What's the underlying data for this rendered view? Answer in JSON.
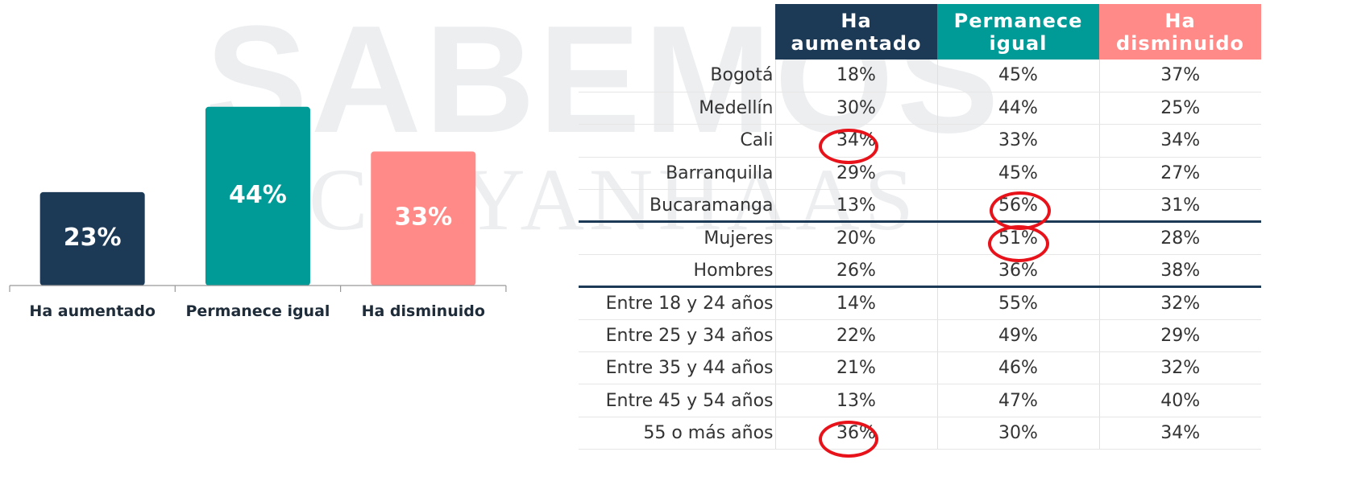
{
  "chart_data": {
    "type": "bar",
    "categories": [
      "Ha aumentado",
      "Permanece igual",
      "Ha disminuido"
    ],
    "values": [
      23,
      44,
      33
    ],
    "value_labels": [
      "23%",
      "44%",
      "33%"
    ],
    "colors": [
      "#1c3a56",
      "#009a97",
      "#ff8a87"
    ]
  },
  "table": {
    "columns": [
      "Ha aumentado",
      "Permanece igual",
      "Ha disminuido"
    ],
    "rows": [
      [
        "Bogotá",
        "18%",
        "45%",
        "37%"
      ],
      [
        "Medellín",
        "30%",
        "44%",
        "25%"
      ],
      [
        "Cali",
        "34%",
        "33%",
        "34%"
      ],
      [
        "Barranquilla",
        "29%",
        "45%",
        "27%"
      ],
      [
        "Bucaramanga",
        "13%",
        "56%",
        "31%"
      ],
      [
        "Mujeres",
        "20%",
        "51%",
        "28%"
      ],
      [
        "Hombres",
        "26%",
        "36%",
        "38%"
      ],
      [
        "Entre 18 y 24 años",
        "14%",
        "55%",
        "32%"
      ],
      [
        "Entre 25 y 34 años",
        "22%",
        "49%",
        "29%"
      ],
      [
        "Entre 35 y 44 años",
        "21%",
        "46%",
        "32%"
      ],
      [
        "Entre 45 y 54 años",
        "13%",
        "47%",
        "40%"
      ],
      [
        "55 o más años",
        "36%",
        "30%",
        "34%"
      ]
    ]
  },
  "watermark": [
    "SABEMOS",
    "INCP-YANHAAS"
  ]
}
